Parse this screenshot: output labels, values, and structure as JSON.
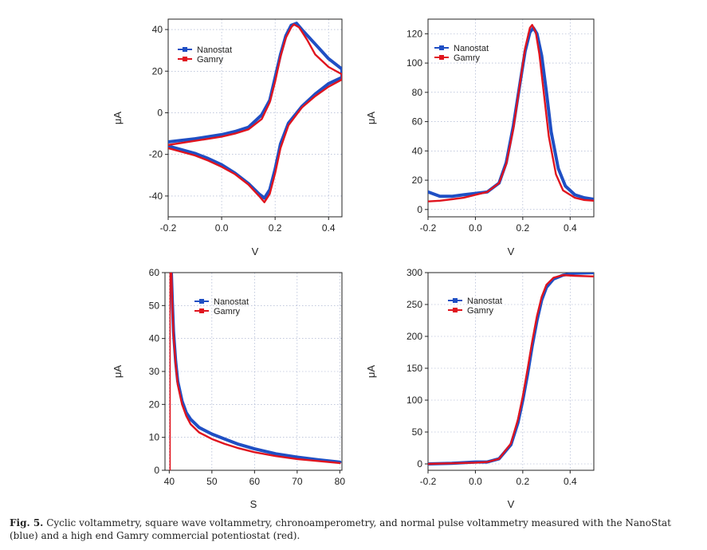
{
  "caption": {
    "label": "Fig. 5.",
    "text": "Cyclic voltammetry, square wave voltammetry, chronoamperometry, and normal pulse voltammetry measured with the NanoStat (blue) and a high end Gamry commercial potentiostat (red)."
  },
  "colors": {
    "nanostat": "#1f4fc4",
    "gamry": "#e0141e",
    "grid": "#9aa6c8"
  },
  "chart_data": [
    {
      "type": "line",
      "title": "",
      "xlabel": "V",
      "ylabel": "μA",
      "xlim": [
        -0.2,
        0.45
      ],
      "ylim": [
        -50,
        45
      ],
      "xticks": [
        -0.2,
        0.0,
        0.2,
        0.4
      ],
      "xtick_labels": [
        "-0.2",
        "0.0",
        "0.2",
        "0.4"
      ],
      "yticks": [
        -40,
        -20,
        0,
        20,
        40
      ],
      "ytick_labels": [
        "-40",
        "-20",
        "0",
        "20",
        "40"
      ],
      "grid": true,
      "legend": [
        "Nanostat",
        "Gamry"
      ],
      "legend_position": "top-left",
      "series": [
        {
          "name": "Nanostat",
          "color": "#1f4fc4",
          "forward": [
            [
              -0.2,
              -14
            ],
            [
              -0.1,
              -12.5
            ],
            [
              0,
              -10.5
            ],
            [
              0.05,
              -9
            ],
            [
              0.1,
              -7
            ],
            [
              0.15,
              -1
            ],
            [
              0.18,
              6
            ],
            [
              0.2,
              17
            ],
            [
              0.22,
              28
            ],
            [
              0.24,
              37
            ],
            [
              0.26,
              42
            ],
            [
              0.28,
              43
            ],
            [
              0.3,
              40
            ],
            [
              0.35,
              33
            ],
            [
              0.4,
              26
            ],
            [
              0.45,
              21
            ]
          ],
          "reverse": [
            [
              0.45,
              17
            ],
            [
              0.4,
              14
            ],
            [
              0.35,
              9
            ],
            [
              0.3,
              3
            ],
            [
              0.25,
              -5
            ],
            [
              0.22,
              -15
            ],
            [
              0.2,
              -27
            ],
            [
              0.18,
              -37
            ],
            [
              0.16,
              -41
            ],
            [
              0.14,
              -39
            ],
            [
              0.1,
              -34
            ],
            [
              0.05,
              -29
            ],
            [
              0,
              -25
            ],
            [
              -0.05,
              -22
            ],
            [
              -0.1,
              -19.5
            ],
            [
              -0.2,
              -16
            ]
          ]
        },
        {
          "name": "Gamry",
          "color": "#e0141e",
          "forward": [
            [
              -0.2,
              -15.5
            ],
            [
              -0.1,
              -13.5
            ],
            [
              0,
              -11.5
            ],
            [
              0.05,
              -10
            ],
            [
              0.1,
              -8
            ],
            [
              0.15,
              -3
            ],
            [
              0.18,
              5
            ],
            [
              0.2,
              15
            ],
            [
              0.22,
              27
            ],
            [
              0.24,
              36
            ],
            [
              0.26,
              41
            ],
            [
              0.27,
              42.5
            ],
            [
              0.29,
              41
            ],
            [
              0.32,
              35
            ],
            [
              0.35,
              28
            ],
            [
              0.4,
              22
            ],
            [
              0.45,
              18.5
            ]
          ],
          "reverse": [
            [
              0.45,
              16
            ],
            [
              0.4,
              12.5
            ],
            [
              0.35,
              8
            ],
            [
              0.3,
              2.5
            ],
            [
              0.25,
              -6
            ],
            [
              0.22,
              -17
            ],
            [
              0.2,
              -29
            ],
            [
              0.18,
              -39
            ],
            [
              0.16,
              -43
            ],
            [
              0.14,
              -40
            ],
            [
              0.1,
              -34.5
            ],
            [
              0.05,
              -29.5
            ],
            [
              0,
              -26
            ],
            [
              -0.05,
              -23
            ],
            [
              -0.1,
              -20.5
            ],
            [
              -0.2,
              -17
            ]
          ]
        }
      ]
    },
    {
      "type": "line",
      "title": "",
      "xlabel": "V",
      "ylabel": "μA",
      "xlim": [
        -0.2,
        0.5
      ],
      "ylim": [
        -5,
        130
      ],
      "xticks": [
        -0.2,
        0.0,
        0.2,
        0.4
      ],
      "xtick_labels": [
        "-0.2",
        "0.0",
        "0.2",
        "0.4"
      ],
      "yticks": [
        0,
        20,
        40,
        60,
        80,
        100,
        120
      ],
      "ytick_labels": [
        "0",
        "20",
        "40",
        "60",
        "80",
        "100",
        "120"
      ],
      "grid": true,
      "legend": [
        "Nanostat",
        "Gamry"
      ],
      "legend_position": "top-left",
      "series": [
        {
          "name": "Nanostat",
          "color": "#1f4fc4",
          "points": [
            [
              -0.2,
              12
            ],
            [
              -0.15,
              9
            ],
            [
              -0.1,
              9
            ],
            [
              -0.05,
              10
            ],
            [
              0,
              11
            ],
            [
              0.05,
              12
            ],
            [
              0.1,
              18
            ],
            [
              0.13,
              32
            ],
            [
              0.16,
              57
            ],
            [
              0.19,
              88
            ],
            [
              0.21,
              108
            ],
            [
              0.23,
              121
            ],
            [
              0.245,
              124
            ],
            [
              0.26,
              120
            ],
            [
              0.28,
              105
            ],
            [
              0.3,
              80
            ],
            [
              0.32,
              53
            ],
            [
              0.35,
              28
            ],
            [
              0.38,
              16
            ],
            [
              0.42,
              10
            ],
            [
              0.46,
              8
            ],
            [
              0.5,
              7
            ]
          ]
        },
        {
          "name": "Gamry",
          "color": "#e0141e",
          "points": [
            [
              -0.2,
              5.5
            ],
            [
              -0.15,
              6
            ],
            [
              -0.1,
              7
            ],
            [
              -0.05,
              8
            ],
            [
              0,
              10
            ],
            [
              0.05,
              12
            ],
            [
              0.1,
              18
            ],
            [
              0.13,
              31
            ],
            [
              0.16,
              55
            ],
            [
              0.19,
              88
            ],
            [
              0.21,
              110
            ],
            [
              0.23,
              124
            ],
            [
              0.24,
              126
            ],
            [
              0.255,
              121
            ],
            [
              0.27,
              106
            ],
            [
              0.29,
              78
            ],
            [
              0.31,
              50
            ],
            [
              0.34,
              24
            ],
            [
              0.37,
              13
            ],
            [
              0.42,
              8
            ],
            [
              0.46,
              6.5
            ],
            [
              0.5,
              6
            ]
          ]
        }
      ]
    },
    {
      "type": "line",
      "title": "",
      "xlabel": "S",
      "ylabel": "μA",
      "xlim": [
        39,
        80.5
      ],
      "ylim": [
        0,
        60
      ],
      "xticks": [
        40,
        50,
        60,
        70,
        80
      ],
      "xtick_labels": [
        "40",
        "50",
        "60",
        "70",
        "80"
      ],
      "yticks": [
        0,
        10,
        20,
        30,
        40,
        50,
        60
      ],
      "ytick_labels": [
        "0",
        "10",
        "20",
        "30",
        "40",
        "50",
        "60"
      ],
      "grid": true,
      "legend": [
        "Nanostat",
        "Gamry"
      ],
      "legend_position": "top-center",
      "series": [
        {
          "name": "Nanostat",
          "color": "#1f4fc4",
          "points": [
            [
              40.5,
              60
            ],
            [
              40.7,
              52
            ],
            [
              41,
              42
            ],
            [
              41.5,
              33
            ],
            [
              42,
              27
            ],
            [
              43,
              21
            ],
            [
              44,
              17.5
            ],
            [
              45,
              15.5
            ],
            [
              47,
              13
            ],
            [
              50,
              11
            ],
            [
              53,
              9.5
            ],
            [
              56,
              8
            ],
            [
              60,
              6.5
            ],
            [
              65,
              5
            ],
            [
              70,
              4
            ],
            [
              75,
              3.2
            ],
            [
              80,
              2.5
            ]
          ]
        },
        {
          "name": "Gamry",
          "color": "#e0141e",
          "spike": [
            [
              40.2,
              0
            ],
            [
              40.2,
              60
            ]
          ],
          "points": [
            [
              40.5,
              60
            ],
            [
              40.7,
              51
            ],
            [
              41,
              41
            ],
            [
              41.5,
              32
            ],
            [
              42,
              26
            ],
            [
              43,
              20
            ],
            [
              44,
              16.5
            ],
            [
              45,
              14
            ],
            [
              47,
              11.5
            ],
            [
              50,
              9.5
            ],
            [
              53,
              8
            ],
            [
              56,
              6.8
            ],
            [
              60,
              5.5
            ],
            [
              65,
              4.3
            ],
            [
              70,
              3.4
            ],
            [
              75,
              2.8
            ],
            [
              80,
              2.2
            ]
          ]
        }
      ]
    },
    {
      "type": "line",
      "title": "",
      "xlabel": "V",
      "ylabel": "μA",
      "xlim": [
        -0.2,
        0.5
      ],
      "ylim": [
        -10,
        300
      ],
      "xticks": [
        -0.2,
        0.0,
        0.2,
        0.4
      ],
      "xtick_labels": [
        "-0.2",
        "0.0",
        "0.2",
        "0.4"
      ],
      "yticks": [
        0,
        50,
        100,
        150,
        200,
        250,
        300
      ],
      "ytick_labels": [
        "0",
        "50",
        "100",
        "150",
        "200",
        "250",
        "300"
      ],
      "grid": true,
      "legend": [
        "Nanostat",
        "Gamry"
      ],
      "legend_position": "top-left",
      "series": [
        {
          "name": "Nanostat",
          "color": "#1f4fc4",
          "points": [
            [
              -0.2,
              0
            ],
            [
              -0.1,
              1
            ],
            [
              0,
              3
            ],
            [
              0.05,
              3
            ],
            [
              0.1,
              8
            ],
            [
              0.15,
              30
            ],
            [
              0.18,
              65
            ],
            [
              0.2,
              100
            ],
            [
              0.22,
              140
            ],
            [
              0.24,
              185
            ],
            [
              0.26,
              225
            ],
            [
              0.28,
              257
            ],
            [
              0.3,
              277
            ],
            [
              0.33,
              290
            ],
            [
              0.37,
              296
            ],
            [
              0.42,
              299
            ],
            [
              0.5,
              300
            ]
          ]
        },
        {
          "name": "Gamry",
          "color": "#e0141e",
          "points": [
            [
              -0.2,
              0
            ],
            [
              -0.1,
              1
            ],
            [
              0,
              2
            ],
            [
              0.05,
              3
            ],
            [
              0.1,
              8
            ],
            [
              0.15,
              32
            ],
            [
              0.18,
              70
            ],
            [
              0.2,
              106
            ],
            [
              0.22,
              148
            ],
            [
              0.24,
              192
            ],
            [
              0.26,
              232
            ],
            [
              0.28,
              262
            ],
            [
              0.3,
              281
            ],
            [
              0.33,
              292
            ],
            [
              0.37,
              296
            ],
            [
              0.42,
              295
            ],
            [
              0.5,
              294
            ]
          ]
        }
      ]
    }
  ]
}
